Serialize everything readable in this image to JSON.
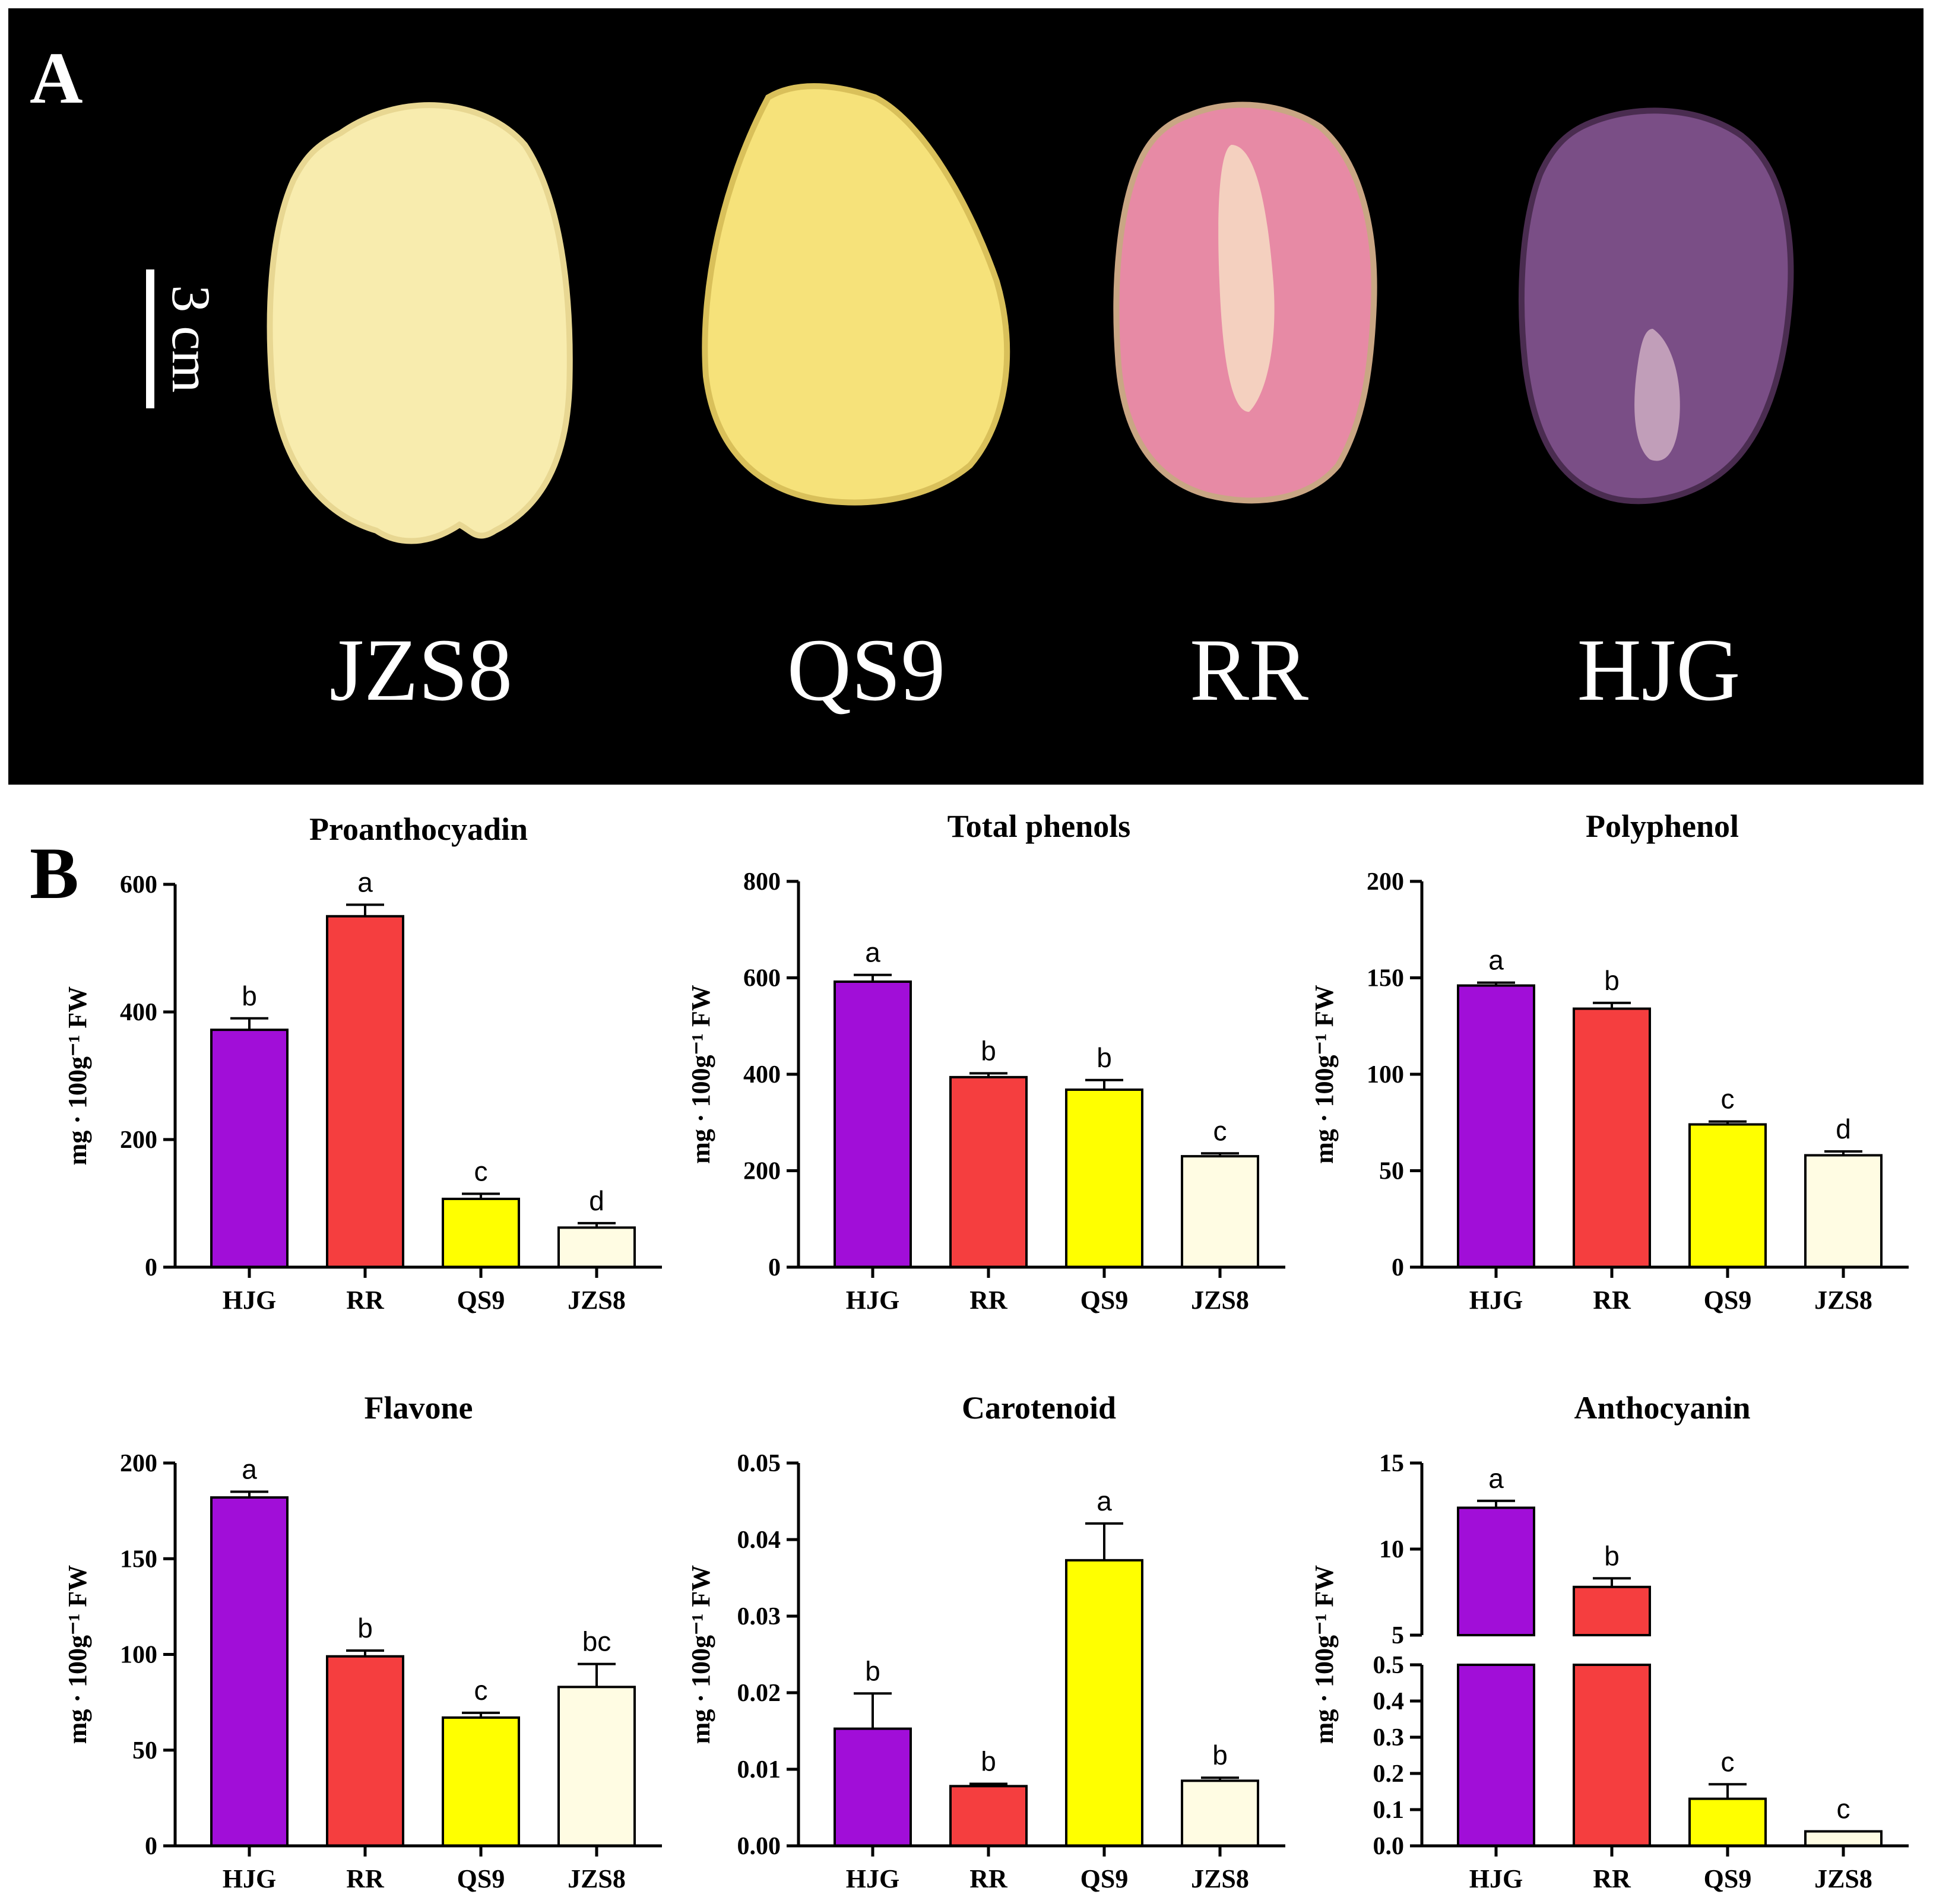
{
  "panel_a": {
    "label": "A",
    "scale_label": "3 cm",
    "tubers": [
      {
        "name": "JZS8",
        "flesh": "#f8ecae",
        "edge": "#e8d792"
      },
      {
        "name": "QS9",
        "flesh": "#f6e27a",
        "edge": "#d9c05a"
      },
      {
        "name": "RR",
        "flesh": "#e78aa5",
        "edge": "#c9a684"
      },
      {
        "name": "HJG",
        "flesh": "#7a4e86",
        "edge": "#4a2c50"
      }
    ]
  },
  "panel_b": {
    "label": "B"
  },
  "colors": {
    "HJG": "#a10ed8",
    "RR": "#f53e3f",
    "QS9": "#ffff00",
    "JZS8": "#fffce3"
  },
  "chart_data": [
    {
      "type": "bar",
      "title": "Proanthocyadin",
      "categories": [
        "HJG",
        "RR",
        "QS9",
        "JZS8"
      ],
      "values": [
        372,
        550,
        107,
        62
      ],
      "errors": [
        18,
        18,
        8,
        7
      ],
      "letters": [
        "b",
        "a",
        "c",
        "d"
      ],
      "ylabel": "mg · 100g⁻¹ FW",
      "ylim": [
        0,
        600
      ],
      "yticks": [
        "0",
        "200",
        "400",
        "600"
      ]
    },
    {
      "type": "bar",
      "title": "Total phenols",
      "categories": [
        "HJG",
        "RR",
        "QS9",
        "JZS8"
      ],
      "values": [
        592,
        394,
        368,
        230
      ],
      "errors": [
        14,
        8,
        20,
        6
      ],
      "letters": [
        "a",
        "b",
        "b",
        "c"
      ],
      "ylabel": "mg · 100g⁻¹ FW",
      "ylim": [
        0,
        800
      ],
      "yticks": [
        "0",
        "200",
        "400",
        "600",
        "800"
      ]
    },
    {
      "type": "bar",
      "title": "Polyphenol",
      "categories": [
        "HJG",
        "RR",
        "QS9",
        "JZS8"
      ],
      "values": [
        146,
        134,
        74,
        58
      ],
      "errors": [
        1.5,
        3,
        1.5,
        2
      ],
      "letters": [
        "a",
        "b",
        "c",
        "d"
      ],
      "ylabel": "mg · 100g⁻¹ FW",
      "ylim": [
        0,
        200
      ],
      "yticks": [
        "0",
        "50",
        "100",
        "150",
        "200"
      ]
    },
    {
      "type": "bar",
      "title": "Flavone",
      "categories": [
        "HJG",
        "RR",
        "QS9",
        "JZS8"
      ],
      "values": [
        182,
        99,
        67,
        83
      ],
      "errors": [
        3,
        3,
        2.5,
        12
      ],
      "letters": [
        "a",
        "b",
        "c",
        "bc"
      ],
      "ylabel": "mg · 100g⁻¹ FW",
      "ylim": [
        0,
        200
      ],
      "yticks": [
        "0",
        "50",
        "100",
        "150",
        "200"
      ]
    },
    {
      "type": "bar",
      "title": "Carotenoid",
      "categories": [
        "HJG",
        "RR",
        "QS9",
        "JZS8"
      ],
      "values": [
        0.0153,
        0.0078,
        0.0373,
        0.0085
      ],
      "errors": [
        0.0046,
        0.0003,
        0.0048,
        0.0004
      ],
      "letters": [
        "b",
        "b",
        "a",
        "b"
      ],
      "ylabel": "mg · 100g⁻¹ FW",
      "ylim": [
        0,
        0.05
      ],
      "yticks": [
        "0.00",
        "0.01",
        "0.02",
        "0.03",
        "0.04",
        "0.05"
      ]
    },
    {
      "type": "bar",
      "title": "Anthocyanin",
      "categories": [
        "HJG",
        "RR",
        "QS9",
        "JZS8"
      ],
      "values": [
        12.4,
        7.8,
        0.13,
        0.04
      ],
      "errors": [
        0.4,
        0.5,
        0.04,
        0.0
      ],
      "letters": [
        "a",
        "b",
        "c",
        "c"
      ],
      "ylabel": "mg · 100g⁻¹ FW",
      "ylim": [
        0,
        15
      ],
      "axis_break": {
        "lower": [
          0,
          0.5
        ],
        "upper": [
          5,
          15
        ]
      },
      "yticks_lower": [
        "0.0",
        "0.1",
        "0.2",
        "0.3",
        "0.4",
        "0.5"
      ],
      "yticks_upper": [
        "5",
        "10",
        "15"
      ]
    }
  ]
}
